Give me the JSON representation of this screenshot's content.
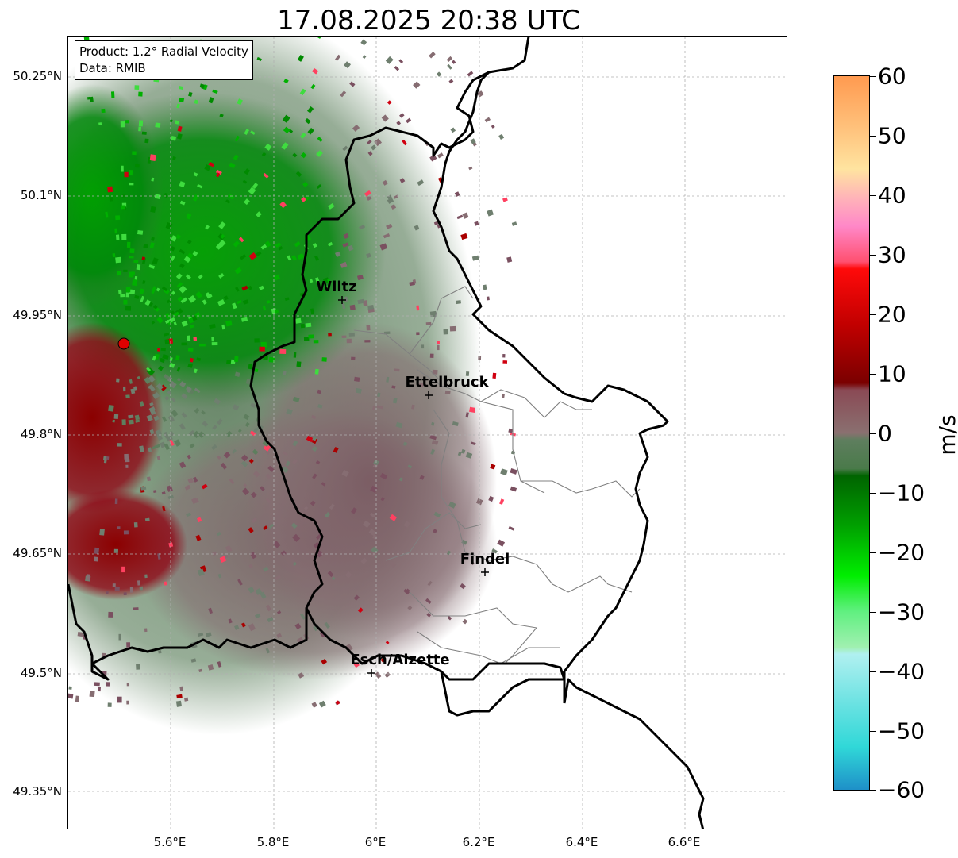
{
  "title": "17.08.2025 20:38 UTC",
  "info": {
    "line1": "Product: 1.2° Radial Velocity",
    "line2": "Data: RMIB"
  },
  "lat_labels": [
    "50.25°N",
    "50.1°N",
    "49.95°N",
    "49.8°N",
    "49.65°N",
    "49.5°N",
    "49.35°N"
  ],
  "lon_labels": [
    "5.6°E",
    "5.8°E",
    "6°E",
    "6.2°E",
    "6.4°E",
    "6.6°E"
  ],
  "cities": [
    {
      "name": "Wiltz"
    },
    {
      "name": "Ettelbruck"
    },
    {
      "name": "Findel"
    },
    {
      "name": "Esch/Alzette"
    }
  ],
  "colorbar": {
    "unit": "m/s",
    "ticks": [
      "60",
      "50",
      "40",
      "30",
      "20",
      "10",
      "0",
      "−10",
      "−20",
      "−30",
      "−40",
      "−50",
      "−60"
    ],
    "range": [
      -60,
      60
    ]
  },
  "colors": {
    "strong_negative_green": "#007a00",
    "neutral_negative": "#5e7e5e",
    "neutral_positive": "#866d72",
    "positive_red": "#8b0000",
    "radar_marker": "#e00000"
  }
}
